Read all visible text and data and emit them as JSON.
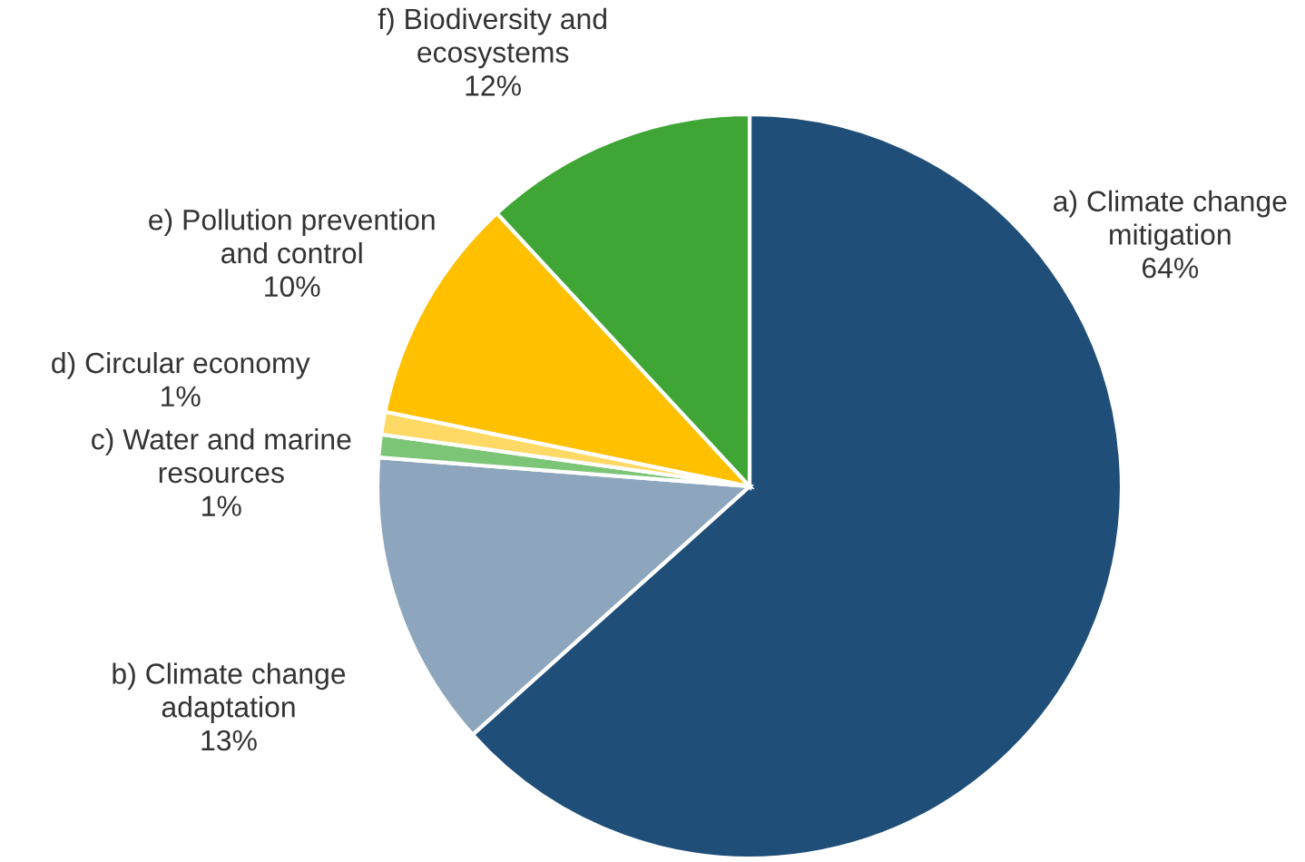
{
  "chart_data": {
    "type": "pie",
    "categories": [
      "a) Climate change\nmitigation",
      "b) Climate change\nadaptation",
      "c) Water and marine\nresources",
      "d) Circular economy",
      "e) Pollution prevention\nand control",
      "f) Biodiversity and\necosystems"
    ],
    "values": [
      64,
      13,
      1,
      1,
      10,
      12
    ],
    "value_labels": [
      "64%",
      "13%",
      "1%",
      "1%",
      "10%",
      "12%"
    ],
    "colors": [
      "#1f4e79",
      "#8ea6bd",
      "#7cc576",
      "#ffd966",
      "#ffc000",
      "#3fa535"
    ]
  }
}
